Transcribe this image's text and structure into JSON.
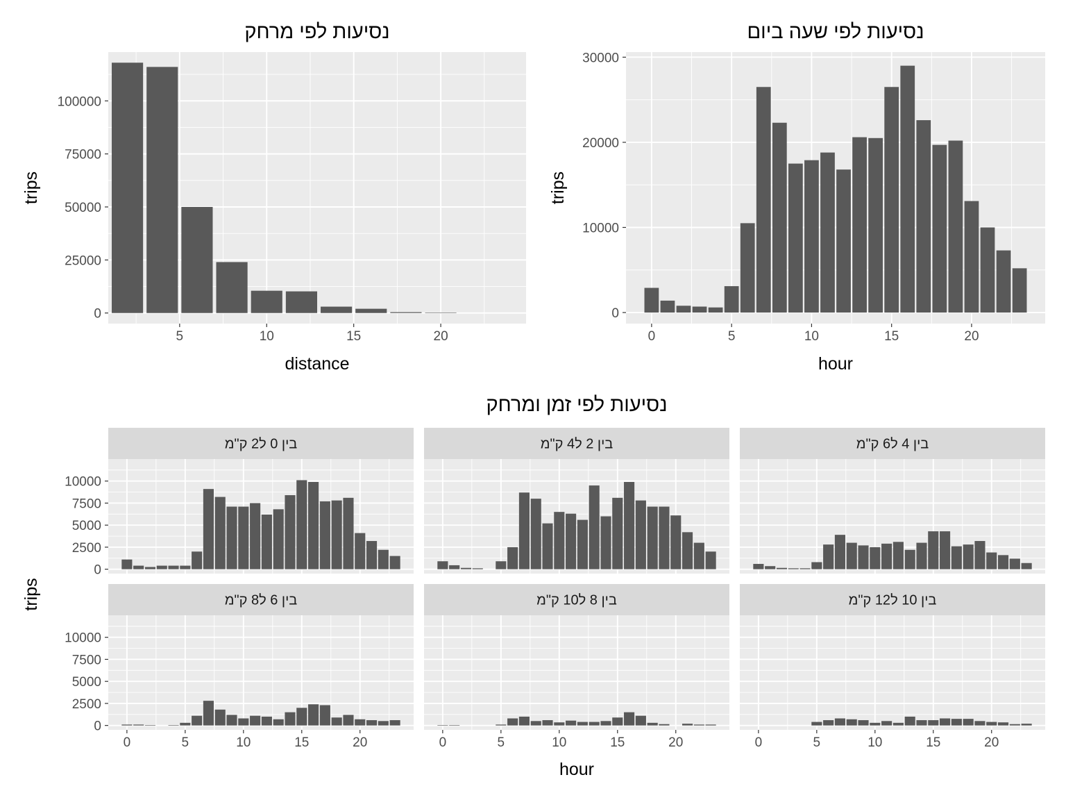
{
  "colors": {
    "panel_bg": "#ebebeb",
    "grid": "#ffffff",
    "bar": "#595959",
    "strip_bg": "#d9d9d9",
    "tick_text": "#4d4d4d"
  },
  "chart_data": [
    {
      "id": "distance",
      "type": "bar",
      "title": "נסיעות לפי מרחק",
      "xlabel": "distance",
      "ylabel": "trips",
      "bar_width": 1.8,
      "x": [
        2,
        4,
        6,
        8,
        10,
        12,
        14,
        16,
        18,
        20
      ],
      "values": [
        118000,
        116000,
        50000,
        24000,
        10500,
        10200,
        3000,
        2000,
        400,
        200
      ],
      "xlim": [
        0.9,
        24.9
      ],
      "ylim": [
        -5000,
        123000
      ],
      "xticks": [
        5,
        10,
        15,
        20
      ],
      "yticks": [
        0,
        25000,
        50000,
        75000,
        100000
      ],
      "grid": true
    },
    {
      "id": "hour",
      "type": "bar",
      "title": "נסיעות לפי שעה ביום",
      "xlabel": "hour",
      "ylabel": "trips",
      "bar_width": 0.9,
      "x": [
        0,
        1,
        2,
        3,
        4,
        5,
        6,
        7,
        8,
        9,
        10,
        11,
        12,
        13,
        14,
        15,
        16,
        17,
        18,
        19,
        20,
        21,
        22,
        23
      ],
      "values": [
        2900,
        1400,
        800,
        700,
        600,
        3100,
        10500,
        26500,
        22300,
        17500,
        17900,
        18800,
        16800,
        20600,
        20500,
        26500,
        29000,
        22600,
        19700,
        20200,
        13100,
        10000,
        7300,
        5200
      ],
      "xlim": [
        -1.6,
        24.6
      ],
      "ylim": [
        -1300,
        30600
      ],
      "xticks": [
        0,
        5,
        10,
        15,
        20
      ],
      "yticks": [
        0,
        10000,
        20000,
        30000
      ],
      "grid": true
    },
    {
      "id": "facets",
      "type": "bar",
      "title": "נסיעות לפי זמן ומרחק",
      "xlabel": "hour",
      "ylabel": "trips",
      "bar_width": 0.9,
      "xlim": [
        -1.6,
        24.6
      ],
      "ylim": [
        -500,
        12500
      ],
      "xticks": [
        0,
        5,
        10,
        15,
        20
      ],
      "yticks": [
        0,
        2500,
        5000,
        7500,
        10000
      ],
      "x": [
        0,
        1,
        2,
        3,
        4,
        5,
        6,
        7,
        8,
        9,
        10,
        11,
        12,
        13,
        14,
        15,
        16,
        17,
        18,
        19,
        20,
        21,
        22,
        23
      ],
      "panels": [
        {
          "label": "בין 0 ל2 ק\"מ",
          "values": [
            1100,
            400,
            250,
            400,
            400,
            400,
            2000,
            9100,
            8200,
            7100,
            7100,
            7500,
            6200,
            6800,
            8400,
            10100,
            9900,
            7700,
            7800,
            8100,
            4100,
            3200,
            2200,
            1500
          ]
        },
        {
          "label": "בין 2 ל4 ק\"מ",
          "values": [
            900,
            450,
            150,
            100,
            0,
            900,
            2500,
            8700,
            8000,
            5200,
            6500,
            6300,
            5600,
            9500,
            6000,
            8100,
            9900,
            7800,
            7100,
            7100,
            6100,
            4200,
            3000,
            2000
          ]
        },
        {
          "label": "בין 4 ל6 ק\"מ",
          "values": [
            600,
            350,
            150,
            100,
            100,
            800,
            2800,
            3900,
            3000,
            2700,
            2500,
            2900,
            3100,
            2200,
            3000,
            4300,
            4300,
            2600,
            2800,
            3200,
            1900,
            1600,
            1200,
            700
          ]
        },
        {
          "label": "בין 6 ל8 ק\"מ",
          "values": [
            100,
            100,
            50,
            0,
            50,
            300,
            1100,
            2800,
            1800,
            1200,
            800,
            1100,
            1000,
            700,
            1500,
            2000,
            2400,
            2300,
            900,
            1200,
            700,
            600,
            500,
            600
          ]
        },
        {
          "label": "בין 8 ל10 ק\"מ",
          "values": [
            50,
            50,
            0,
            0,
            0,
            100,
            800,
            1000,
            500,
            600,
            350,
            550,
            400,
            400,
            500,
            900,
            1500,
            1100,
            300,
            150,
            0,
            200,
            100,
            100
          ]
        },
        {
          "label": "בין 10 ל12 ק\"מ",
          "values": [
            0,
            0,
            0,
            0,
            0,
            400,
            600,
            800,
            700,
            600,
            300,
            500,
            300,
            1000,
            600,
            600,
            800,
            750,
            750,
            500,
            400,
            350,
            150,
            200
          ]
        }
      ],
      "grid": true
    }
  ]
}
